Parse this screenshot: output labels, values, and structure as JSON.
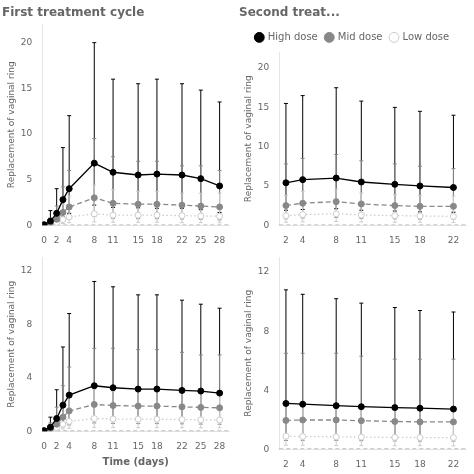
{
  "chart_data": [
    {
      "type": "line",
      "title": "First treatment cycle",
      "ylabel": "Replacement of vaginal ring",
      "x": [
        0,
        1,
        2,
        3,
        4,
        8,
        11,
        15,
        18,
        22,
        25,
        28
      ],
      "xlim": [
        -0.3,
        29.5
      ],
      "xticks": [
        0,
        2,
        4,
        8,
        11,
        15,
        18,
        22,
        25,
        28
      ],
      "ylim": [
        0,
        22
      ],
      "yticks": [
        0,
        5,
        10,
        15,
        20
      ],
      "grid": false,
      "baseline": 0.015,
      "series": [
        {
          "name": "High dose",
          "color": "#000000",
          "marker": "circle",
          "line_style": "solid",
          "values": [
            0.05,
            0.45,
            1.3,
            2.8,
            4.0,
            6.8,
            5.8,
            5.5,
            5.6,
            5.5,
            5.1,
            4.3
          ],
          "lower": [
            0.01,
            0.12,
            0.45,
            0.9,
            1.3,
            2.2,
            1.95,
            1.9,
            1.85,
            1.85,
            1.7,
            1.4
          ],
          "upper": [
            0.18,
            1.6,
            4.0,
            8.5,
            12.0,
            20.0,
            16.0,
            15.5,
            16.0,
            15.5,
            14.8,
            13.5
          ]
        },
        {
          "name": "Mid dose",
          "color": "#888888",
          "marker": "circle",
          "line_style": "dashed",
          "values": [
            0.03,
            0.22,
            0.65,
            1.4,
            2.0,
            3.0,
            2.4,
            2.3,
            2.3,
            2.2,
            2.1,
            2.0
          ],
          "lower": [
            0.008,
            0.06,
            0.18,
            0.45,
            0.65,
            0.95,
            0.75,
            0.72,
            0.72,
            0.68,
            0.65,
            0.58
          ],
          "upper": [
            0.11,
            0.8,
            2.1,
            4.2,
            6.0,
            9.5,
            7.5,
            7.0,
            7.0,
            6.5,
            6.5,
            6.0
          ]
        },
        {
          "name": "Low dose",
          "color": "#cccccc",
          "marker": "open_circle",
          "line_style": "dotted",
          "values": [
            0.018,
            0.1,
            0.3,
            0.62,
            0.9,
            1.25,
            1.1,
            1.1,
            1.1,
            1.05,
            1.0,
            0.98
          ],
          "lower": [
            0.004,
            0.028,
            0.085,
            0.18,
            0.26,
            0.36,
            0.32,
            0.32,
            0.32,
            0.28,
            0.28,
            0.27
          ],
          "upper": [
            0.055,
            0.38,
            1.1,
            2.3,
            3.2,
            4.4,
            3.9,
            3.7,
            3.7,
            3.5,
            3.5,
            3.5
          ]
        }
      ]
    },
    {
      "type": "line",
      "title": "Second treat...",
      "ylabel": "Replacement of vaginal ring",
      "legend": "top",
      "x": [
        2,
        4,
        8,
        11,
        15,
        18,
        22
      ],
      "xlim": [
        1.2,
        23.5
      ],
      "xticks": [
        2,
        4,
        8,
        11,
        15,
        18,
        22
      ],
      "ylim": [
        0,
        22
      ],
      "yticks": [
        0,
        5,
        10,
        15,
        20
      ],
      "grid": false,
      "baseline": 0.015,
      "series": [
        {
          "name": "High dose",
          "color": "#000000",
          "marker": "circle",
          "line_style": "solid",
          "values": [
            5.4,
            5.8,
            6.0,
            5.5,
            5.2,
            5.0,
            4.8
          ],
          "lower": [
            1.9,
            2.0,
            2.1,
            1.9,
            1.8,
            1.7,
            1.65
          ],
          "upper": [
            15.5,
            16.5,
            17.5,
            15.8,
            15.0,
            14.5,
            14.0
          ]
        },
        {
          "name": "Mid dose",
          "color": "#888888",
          "marker": "circle",
          "line_style": "dashed",
          "values": [
            2.5,
            2.8,
            3.0,
            2.7,
            2.5,
            2.4,
            2.4
          ],
          "lower": [
            0.82,
            0.92,
            1.0,
            0.88,
            0.82,
            0.78,
            0.78
          ],
          "upper": [
            7.8,
            8.5,
            9.0,
            8.2,
            7.8,
            7.5,
            7.2
          ]
        },
        {
          "name": "Low dose",
          "color": "#cccccc",
          "marker": "open_circle",
          "line_style": "dotted",
          "values": [
            1.2,
            1.35,
            1.45,
            1.3,
            1.22,
            1.18,
            1.12
          ],
          "lower": [
            0.38,
            0.42,
            0.48,
            0.42,
            0.38,
            0.37,
            0.35
          ],
          "upper": [
            3.8,
            4.3,
            4.6,
            4.1,
            3.9,
            3.8,
            3.7
          ]
        }
      ]
    },
    {
      "type": "line",
      "ylabel": "Replacement of vaginal ring",
      "xlabel": "Time (days)",
      "x": [
        0,
        1,
        2,
        3,
        4,
        8,
        11,
        15,
        18,
        22,
        25,
        28
      ],
      "xlim": [
        -0.3,
        29.5
      ],
      "xticks": [
        0,
        2,
        4,
        8,
        11,
        15,
        18,
        22,
        25,
        28
      ],
      "ylim": [
        0,
        13
      ],
      "yticks": [
        0,
        4,
        8,
        12
      ],
      "grid": false,
      "baseline": 0.015,
      "series": [
        {
          "name": "High dose",
          "color": "#000000",
          "marker": "circle",
          "line_style": "solid",
          "values": [
            0.04,
            0.3,
            0.95,
            1.95,
            2.7,
            3.4,
            3.25,
            3.15,
            3.15,
            3.05,
            3.0,
            2.85
          ],
          "lower": [
            0.01,
            0.08,
            0.28,
            0.58,
            0.78,
            0.98,
            0.92,
            0.88,
            0.88,
            0.82,
            0.8,
            0.78
          ],
          "upper": [
            0.12,
            1.05,
            3.1,
            6.3,
            8.8,
            11.2,
            10.8,
            10.2,
            10.2,
            9.8,
            9.5,
            9.2
          ]
        },
        {
          "name": "Mid dose",
          "color": "#888888",
          "marker": "circle",
          "line_style": "dashed",
          "values": [
            0.028,
            0.17,
            0.52,
            1.05,
            1.52,
            2.0,
            1.92,
            1.88,
            1.88,
            1.82,
            1.78,
            1.75
          ],
          "lower": [
            0.007,
            0.045,
            0.14,
            0.33,
            0.47,
            0.62,
            0.58,
            0.57,
            0.57,
            0.55,
            0.53,
            0.52
          ],
          "upper": [
            0.095,
            0.62,
            1.8,
            3.4,
            4.8,
            6.2,
            6.2,
            6.1,
            6.1,
            5.9,
            5.7,
            5.7
          ]
        },
        {
          "name": "Low dose",
          "color": "#cccccc",
          "marker": "open_circle",
          "line_style": "dotted",
          "values": [
            0.014,
            0.085,
            0.26,
            0.52,
            0.74,
            0.95,
            0.91,
            0.9,
            0.9,
            0.87,
            0.85,
            0.84
          ],
          "lower": [
            0.0035,
            0.023,
            0.075,
            0.16,
            0.22,
            0.28,
            0.27,
            0.265,
            0.265,
            0.256,
            0.25,
            0.247
          ],
          "upper": [
            0.048,
            0.3,
            0.9,
            1.8,
            2.55,
            3.15,
            3.0,
            3.0,
            3.0,
            2.9,
            2.85,
            2.82
          ]
        }
      ]
    },
    {
      "type": "line",
      "ylabel": "Replacement of vaginal ring",
      "x": [
        2,
        4,
        8,
        11,
        15,
        18,
        22
      ],
      "xlim": [
        1.2,
        23.5
      ],
      "xticks": [
        2,
        4,
        8,
        11,
        15,
        18,
        22
      ],
      "ylim": [
        0,
        13
      ],
      "yticks": [
        0,
        4,
        8,
        12
      ],
      "grid": false,
      "baseline": 0.015,
      "series": [
        {
          "name": "High dose",
          "color": "#000000",
          "marker": "circle",
          "line_style": "solid",
          "values": [
            3.1,
            3.05,
            2.95,
            2.88,
            2.82,
            2.78,
            2.72
          ],
          "lower": [
            0.87,
            0.86,
            0.83,
            0.81,
            0.79,
            0.77,
            0.75
          ],
          "upper": [
            10.8,
            10.5,
            10.2,
            9.9,
            9.6,
            9.4,
            9.3
          ]
        },
        {
          "name": "Mid dose",
          "color": "#888888",
          "marker": "circle",
          "line_style": "dashed",
          "values": [
            1.95,
            1.98,
            1.98,
            1.93,
            1.88,
            1.85,
            1.85
          ],
          "lower": [
            0.59,
            0.6,
            0.6,
            0.58,
            0.56,
            0.55,
            0.55
          ],
          "upper": [
            6.5,
            6.5,
            6.5,
            6.3,
            6.1,
            6.1,
            6.1
          ]
        },
        {
          "name": "Low dose",
          "color": "#cccccc",
          "marker": "open_circle",
          "line_style": "dotted",
          "values": [
            0.88,
            0.86,
            0.84,
            0.82,
            0.8,
            0.79,
            0.78
          ],
          "lower": [
            0.267,
            0.258,
            0.25,
            0.242,
            0.235,
            0.231,
            0.226
          ],
          "upper": [
            2.96,
            2.88,
            2.82,
            2.76,
            2.7,
            2.66,
            2.62
          ]
        }
      ]
    }
  ]
}
